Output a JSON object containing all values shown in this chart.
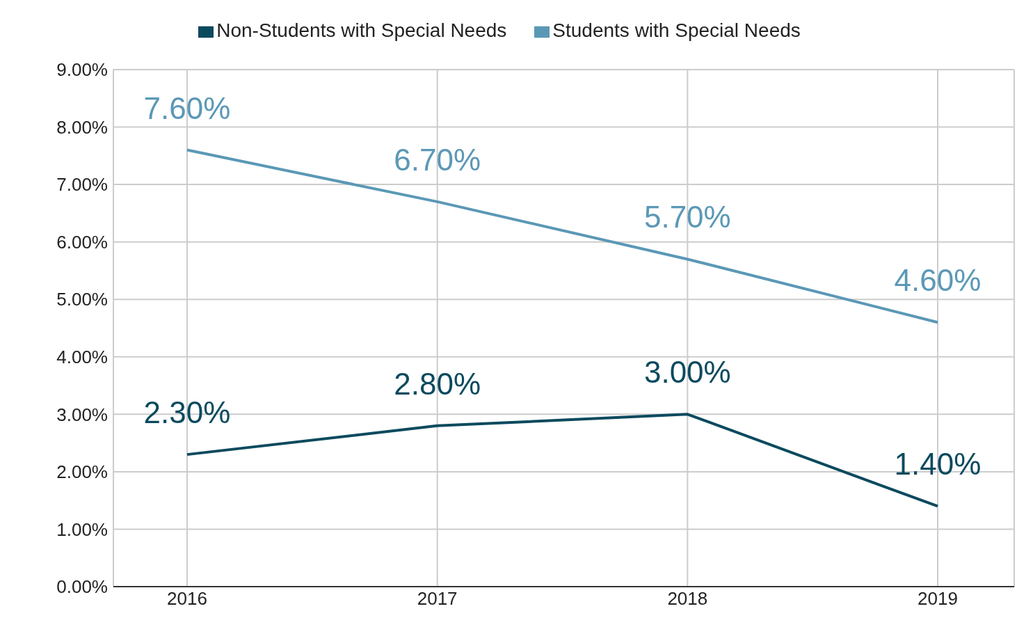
{
  "chart_data": {
    "type": "line",
    "categories": [
      "2016",
      "2017",
      "2018",
      "2019"
    ],
    "series": [
      {
        "name": "Students with Special Needs",
        "color": "#5b98b6",
        "values": [
          7.6,
          6.7,
          5.7,
          4.6
        ],
        "value_labels": [
          "7.60%",
          "6.70%",
          "5.70%",
          "4.60%"
        ]
      },
      {
        "name": "Non-Students with Special Needs",
        "color": "#0b4a5e",
        "values": [
          2.3,
          2.8,
          3.0,
          1.4
        ],
        "value_labels": [
          "2.30%",
          "2.80%",
          "3.00%",
          "1.40%"
        ]
      }
    ],
    "ylim": [
      0,
      9
    ],
    "yticks": [
      {
        "value": 0,
        "label": "0.00%"
      },
      {
        "value": 1,
        "label": "1.00%"
      },
      {
        "value": 2,
        "label": "2.00%"
      },
      {
        "value": 3,
        "label": "3.00%"
      },
      {
        "value": 4,
        "label": "4.00%"
      },
      {
        "value": 5,
        "label": "5.00%"
      },
      {
        "value": 6,
        "label": "6.00%"
      },
      {
        "value": 7,
        "label": "7.00%"
      },
      {
        "value": 8,
        "label": "8.00%"
      },
      {
        "value": 9,
        "label": "9.00%"
      }
    ],
    "grid": true,
    "legend": "top",
    "marker": "none",
    "line_style": "solid"
  }
}
